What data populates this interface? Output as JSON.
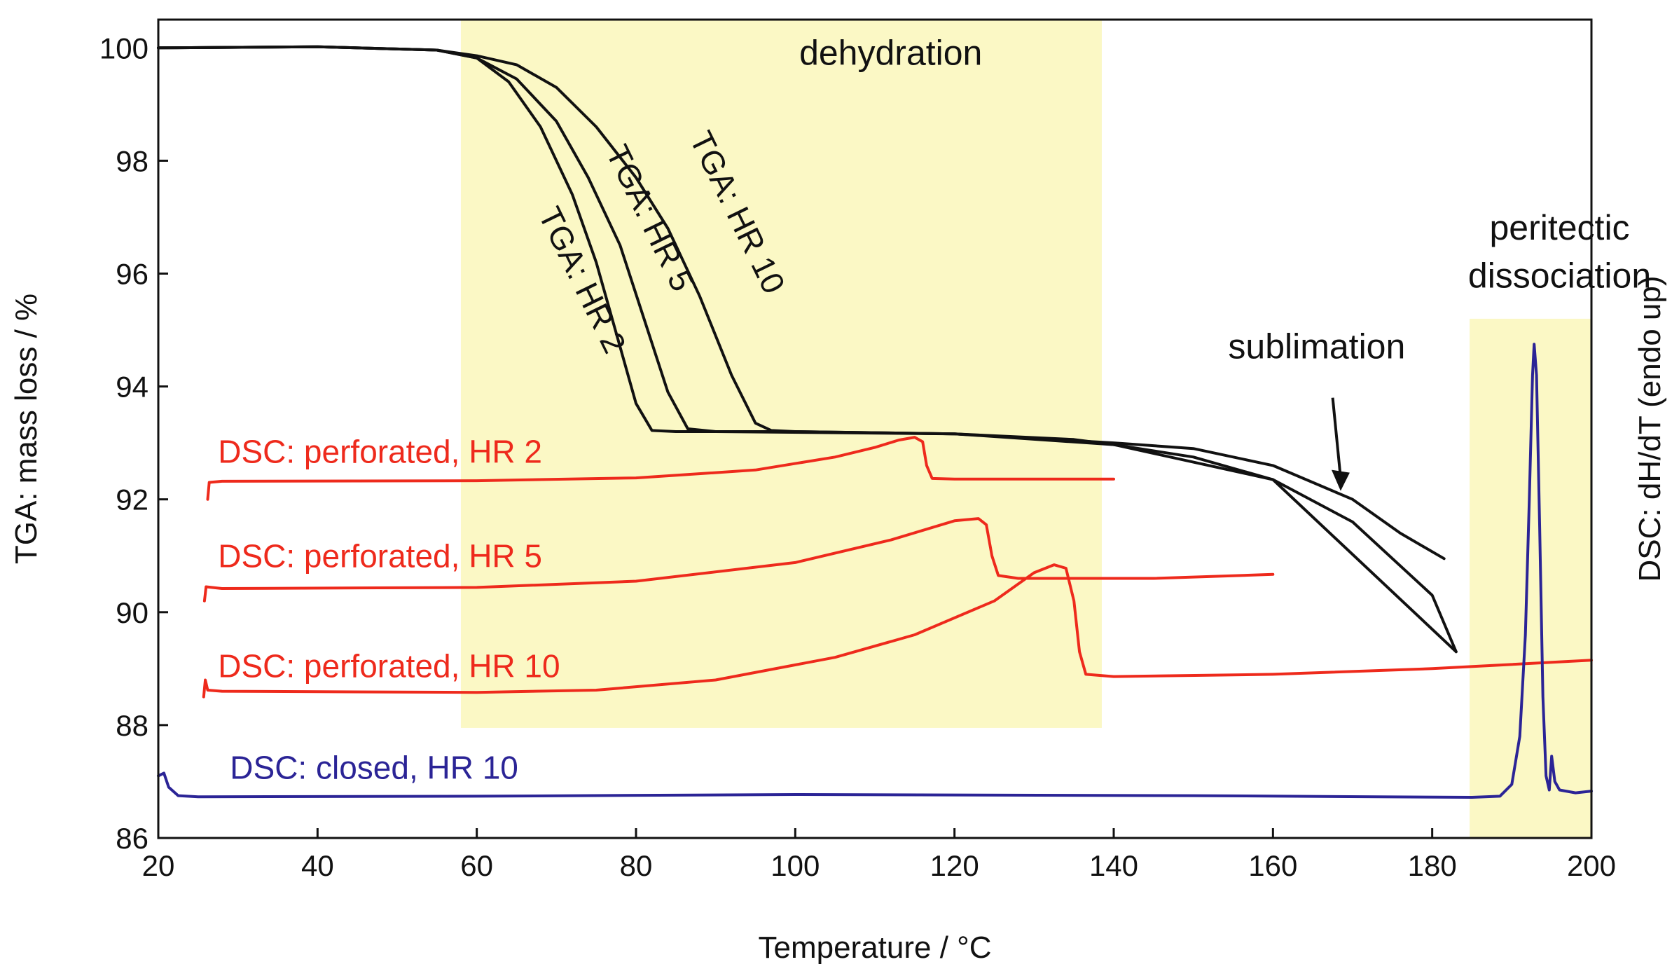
{
  "chart_data": {
    "type": "line",
    "title": "",
    "xlabel": "Temperature / °C",
    "ylabel_left": "TGA: mass loss / %",
    "ylabel_right": "DSC: dH/dT (endo up)",
    "xlim": [
      20,
      200
    ],
    "ylim": [
      86,
      100.5
    ],
    "x_ticks": [
      20,
      40,
      60,
      80,
      100,
      120,
      140,
      160,
      180,
      200
    ],
    "y_ticks": [
      86,
      88,
      90,
      92,
      94,
      96,
      98,
      100
    ],
    "shaded_regions": [
      {
        "name": "dehydration",
        "x": [
          58,
          138.5
        ],
        "y": [
          87.95,
          100.5
        ],
        "color": "#fbf8c5"
      },
      {
        "name": "peritectic dissociation",
        "x": [
          184.7,
          200
        ],
        "y": [
          86,
          95.2
        ],
        "color": "#fbf8c5"
      }
    ],
    "annotations": [
      {
        "text": "dehydration",
        "x": 112,
        "y": 99.7
      },
      {
        "text": "peritectic",
        "x": 196,
        "y": 96.6
      },
      {
        "text": "dissociation",
        "x": 196,
        "y": 95.75
      },
      {
        "text": "sublimation",
        "x": 165.5,
        "y": 94.5
      }
    ],
    "arrow": {
      "from": [
        167.5,
        93.8
      ],
      "to": [
        168.5,
        92.15
      ],
      "color": "#111111"
    },
    "series": [
      {
        "name": "TGA: HR 2",
        "color": "#111111",
        "label": {
          "text": "TGA: HR 2",
          "x": 72,
          "y": 95.8,
          "rotation": 64
        },
        "points": [
          [
            20,
            100.0
          ],
          [
            40,
            100.02
          ],
          [
            55,
            99.96
          ],
          [
            60,
            99.82
          ],
          [
            64,
            99.4
          ],
          [
            68,
            98.6
          ],
          [
            72,
            97.4
          ],
          [
            75,
            96.2
          ],
          [
            78,
            94.7
          ],
          [
            80,
            93.7
          ],
          [
            82,
            93.22
          ],
          [
            85,
            93.2
          ],
          [
            100,
            93.2
          ],
          [
            120,
            93.16
          ],
          [
            135,
            93.06
          ],
          [
            140,
            92.97
          ],
          [
            150,
            92.75
          ],
          [
            160,
            92.35
          ],
          [
            170,
            91.6
          ],
          [
            180,
            90.3
          ],
          [
            183,
            89.3
          ]
        ]
      },
      {
        "name": "TGA: HR 5",
        "color": "#111111",
        "label": {
          "text": "TGA: HR 5",
          "x": 80.5,
          "y": 96.9,
          "rotation": 64
        },
        "points": [
          [
            20,
            100.0
          ],
          [
            40,
            100.02
          ],
          [
            55,
            99.96
          ],
          [
            60,
            99.82
          ],
          [
            65,
            99.45
          ],
          [
            70,
            98.7
          ],
          [
            74,
            97.7
          ],
          [
            78,
            96.5
          ],
          [
            81,
            95.2
          ],
          [
            84,
            93.9
          ],
          [
            86.5,
            93.25
          ],
          [
            90,
            93.2
          ],
          [
            120,
            93.16
          ],
          [
            140,
            92.97
          ],
          [
            160,
            92.35
          ],
          [
            183,
            89.3
          ]
        ]
      },
      {
        "name": "TGA: HR 10",
        "color": "#111111",
        "label": {
          "text": "TGA: HR 10",
          "x": 91.5,
          "y": 97.0,
          "rotation": 64
        },
        "points": [
          [
            20,
            100.0
          ],
          [
            40,
            100.02
          ],
          [
            55,
            99.96
          ],
          [
            60,
            99.86
          ],
          [
            65,
            99.7
          ],
          [
            70,
            99.3
          ],
          [
            75,
            98.6
          ],
          [
            80,
            97.7
          ],
          [
            84,
            96.8
          ],
          [
            88,
            95.6
          ],
          [
            92,
            94.2
          ],
          [
            95,
            93.35
          ],
          [
            97,
            93.22
          ],
          [
            100,
            93.2
          ],
          [
            120,
            93.16
          ],
          [
            140,
            93.0
          ],
          [
            150,
            92.9
          ],
          [
            160,
            92.6
          ],
          [
            170,
            92.0
          ],
          [
            176,
            91.4
          ],
          [
            181.5,
            90.95
          ]
        ]
      },
      {
        "name": "DSC: perforated, HR 2",
        "color": "#ee2a1c",
        "label": {
          "text": "DSC: perforated, HR 2",
          "x": 27.5,
          "y": 92.65
        },
        "points": [
          [
            26.2,
            92.0
          ],
          [
            26.4,
            92.3
          ],
          [
            28,
            92.32
          ],
          [
            60,
            92.33
          ],
          [
            80,
            92.38
          ],
          [
            95,
            92.52
          ],
          [
            105,
            92.75
          ],
          [
            110,
            92.92
          ],
          [
            113,
            93.05
          ],
          [
            115,
            93.1
          ],
          [
            116,
            93.02
          ],
          [
            116.5,
            92.6
          ],
          [
            117.2,
            92.37
          ],
          [
            120,
            92.36
          ],
          [
            140,
            92.36
          ]
        ]
      },
      {
        "name": "DSC: perforated, HR 5",
        "color": "#ee2a1c",
        "label": {
          "text": "DSC: perforated, HR 5",
          "x": 27.5,
          "y": 90.8
        },
        "points": [
          [
            25.8,
            90.2
          ],
          [
            26,
            90.45
          ],
          [
            28,
            90.42
          ],
          [
            60,
            90.44
          ],
          [
            80,
            90.55
          ],
          [
            100,
            90.88
          ],
          [
            112,
            91.28
          ],
          [
            120,
            91.62
          ],
          [
            123,
            91.66
          ],
          [
            124,
            91.55
          ],
          [
            124.7,
            91.0
          ],
          [
            125.5,
            90.65
          ],
          [
            128,
            90.6
          ],
          [
            145,
            90.6
          ],
          [
            160,
            90.67
          ]
        ]
      },
      {
        "name": "DSC: perforated, HR 10",
        "color": "#ee2a1c",
        "label": {
          "text": "DSC: perforated, HR 10",
          "x": 27.5,
          "y": 88.85
        },
        "points": [
          [
            25.7,
            88.5
          ],
          [
            25.9,
            88.8
          ],
          [
            26.2,
            88.62
          ],
          [
            28,
            88.6
          ],
          [
            60,
            88.58
          ],
          [
            75,
            88.62
          ],
          [
            90,
            88.8
          ],
          [
            105,
            89.2
          ],
          [
            115,
            89.6
          ],
          [
            125,
            90.2
          ],
          [
            130,
            90.7
          ],
          [
            132.5,
            90.84
          ],
          [
            134,
            90.78
          ],
          [
            135,
            90.2
          ],
          [
            135.7,
            89.3
          ],
          [
            136.5,
            88.9
          ],
          [
            140,
            88.86
          ],
          [
            160,
            88.9
          ],
          [
            180,
            89.0
          ],
          [
            200,
            89.15
          ]
        ]
      },
      {
        "name": "DSC: closed, HR 10",
        "color": "#2b2496",
        "label": {
          "text": "DSC: closed, HR 10",
          "x": 29,
          "y": 87.05
        },
        "points": [
          [
            20,
            87.1
          ],
          [
            20.7,
            87.15
          ],
          [
            21.3,
            86.9
          ],
          [
            22.5,
            86.75
          ],
          [
            25,
            86.73
          ],
          [
            60,
            86.74
          ],
          [
            100,
            86.77
          ],
          [
            150,
            86.75
          ],
          [
            185,
            86.72
          ],
          [
            188.5,
            86.74
          ],
          [
            190,
            86.95
          ],
          [
            191,
            87.8
          ],
          [
            191.7,
            89.6
          ],
          [
            192.2,
            92.0
          ],
          [
            192.6,
            94.2
          ],
          [
            192.8,
            94.75
          ],
          [
            193.1,
            94.2
          ],
          [
            193.5,
            91.5
          ],
          [
            193.9,
            88.5
          ],
          [
            194.3,
            87.1
          ],
          [
            194.7,
            86.85
          ],
          [
            195,
            87.45
          ],
          [
            195.4,
            87.0
          ],
          [
            196,
            86.85
          ],
          [
            198,
            86.8
          ],
          [
            200,
            86.83
          ]
        ]
      }
    ]
  }
}
